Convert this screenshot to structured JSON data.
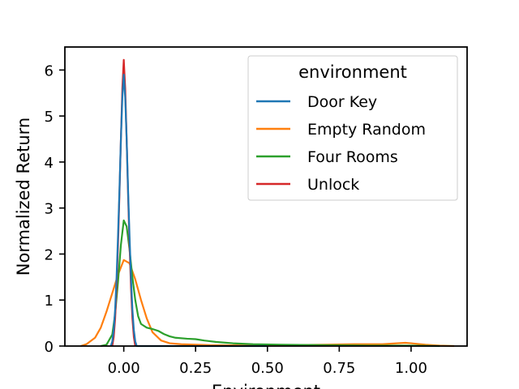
{
  "chart_data": {
    "type": "line",
    "xlabel": "Environment",
    "ylabel": "Normalized Return",
    "xlim": [
      -0.205,
      1.195
    ],
    "ylim": [
      0,
      6.5
    ],
    "xticks": [
      {
        "value": 0.0,
        "label": "0.00"
      },
      {
        "value": 0.25,
        "label": "0.25"
      },
      {
        "value": 0.5,
        "label": "0.50"
      },
      {
        "value": 0.75,
        "label": "0.75"
      },
      {
        "value": 1.0,
        "label": "1.00"
      }
    ],
    "yticks": [
      {
        "value": 0,
        "label": "0"
      },
      {
        "value": 1,
        "label": "1"
      },
      {
        "value": 2,
        "label": "2"
      },
      {
        "value": 3,
        "label": "3"
      },
      {
        "value": 4,
        "label": "4"
      },
      {
        "value": 5,
        "label": "5"
      },
      {
        "value": 6,
        "label": "6"
      }
    ],
    "grid": false,
    "legend": {
      "title": "environment",
      "placement": "top-right"
    },
    "series": [
      {
        "name": "Door Key",
        "color": "#1f77b4",
        "points": [
          [
            -0.045,
            0.0
          ],
          [
            -0.04,
            0.1
          ],
          [
            -0.035,
            0.35
          ],
          [
            -0.03,
            0.8
          ],
          [
            -0.025,
            1.5
          ],
          [
            -0.02,
            2.4
          ],
          [
            -0.015,
            3.4
          ],
          [
            -0.01,
            4.5
          ],
          [
            -0.005,
            5.4
          ],
          [
            0.0,
            5.9
          ],
          [
            0.005,
            5.4
          ],
          [
            0.01,
            4.5
          ],
          [
            0.015,
            3.4
          ],
          [
            0.02,
            2.4
          ],
          [
            0.025,
            1.5
          ],
          [
            0.03,
            0.8
          ],
          [
            0.035,
            0.35
          ],
          [
            0.04,
            0.1
          ],
          [
            0.045,
            0.0
          ],
          [
            0.1,
            0.0
          ],
          [
            0.3,
            0.0
          ],
          [
            0.5,
            0.0
          ]
        ]
      },
      {
        "name": "Empty Random",
        "color": "#ff7f0e",
        "points": [
          [
            -0.15,
            0.0
          ],
          [
            -0.13,
            0.04
          ],
          [
            -0.1,
            0.18
          ],
          [
            -0.08,
            0.4
          ],
          [
            -0.06,
            0.75
          ],
          [
            -0.04,
            1.15
          ],
          [
            -0.02,
            1.55
          ],
          [
            0.0,
            1.87
          ],
          [
            0.02,
            1.8
          ],
          [
            0.04,
            1.45
          ],
          [
            0.06,
            1.0
          ],
          [
            0.08,
            0.6
          ],
          [
            0.1,
            0.3
          ],
          [
            0.13,
            0.12
          ],
          [
            0.16,
            0.06
          ],
          [
            0.2,
            0.04
          ],
          [
            0.3,
            0.02
          ],
          [
            0.5,
            0.01
          ],
          [
            0.7,
            0.03
          ],
          [
            0.8,
            0.04
          ],
          [
            0.9,
            0.04
          ],
          [
            0.95,
            0.06
          ],
          [
            0.98,
            0.07
          ],
          [
            1.0,
            0.06
          ],
          [
            1.05,
            0.03
          ],
          [
            1.1,
            0.01
          ],
          [
            1.15,
            0.0
          ]
        ]
      },
      {
        "name": "Four Rooms",
        "color": "#2ca02c",
        "points": [
          [
            -0.08,
            0.0
          ],
          [
            -0.06,
            0.03
          ],
          [
            -0.04,
            0.25
          ],
          [
            -0.03,
            0.7
          ],
          [
            -0.02,
            1.4
          ],
          [
            -0.01,
            2.2
          ],
          [
            0.0,
            2.73
          ],
          [
            0.01,
            2.6
          ],
          [
            0.02,
            2.1
          ],
          [
            0.03,
            1.5
          ],
          [
            0.04,
            1.0
          ],
          [
            0.05,
            0.65
          ],
          [
            0.06,
            0.48
          ],
          [
            0.08,
            0.4
          ],
          [
            0.1,
            0.37
          ],
          [
            0.12,
            0.33
          ],
          [
            0.14,
            0.26
          ],
          [
            0.16,
            0.21
          ],
          [
            0.18,
            0.18
          ],
          [
            0.22,
            0.16
          ],
          [
            0.25,
            0.15
          ],
          [
            0.28,
            0.12
          ],
          [
            0.32,
            0.09
          ],
          [
            0.38,
            0.06
          ],
          [
            0.45,
            0.04
          ],
          [
            0.55,
            0.03
          ],
          [
            0.7,
            0.02
          ],
          [
            0.85,
            0.01
          ],
          [
            1.0,
            0.01
          ],
          [
            1.1,
            0.0
          ]
        ]
      },
      {
        "name": "Unlock",
        "color": "#d62728",
        "points": [
          [
            -0.04,
            0.0
          ],
          [
            -0.035,
            0.2
          ],
          [
            -0.03,
            0.6
          ],
          [
            -0.025,
            1.3
          ],
          [
            -0.02,
            2.2
          ],
          [
            -0.015,
            3.3
          ],
          [
            -0.01,
            4.5
          ],
          [
            -0.005,
            5.6
          ],
          [
            0.0,
            6.22
          ],
          [
            0.005,
            5.6
          ],
          [
            0.01,
            4.5
          ],
          [
            0.015,
            3.3
          ],
          [
            0.02,
            2.2
          ],
          [
            0.025,
            1.3
          ],
          [
            0.03,
            0.6
          ],
          [
            0.035,
            0.2
          ],
          [
            0.04,
            0.0
          ]
        ]
      }
    ]
  }
}
